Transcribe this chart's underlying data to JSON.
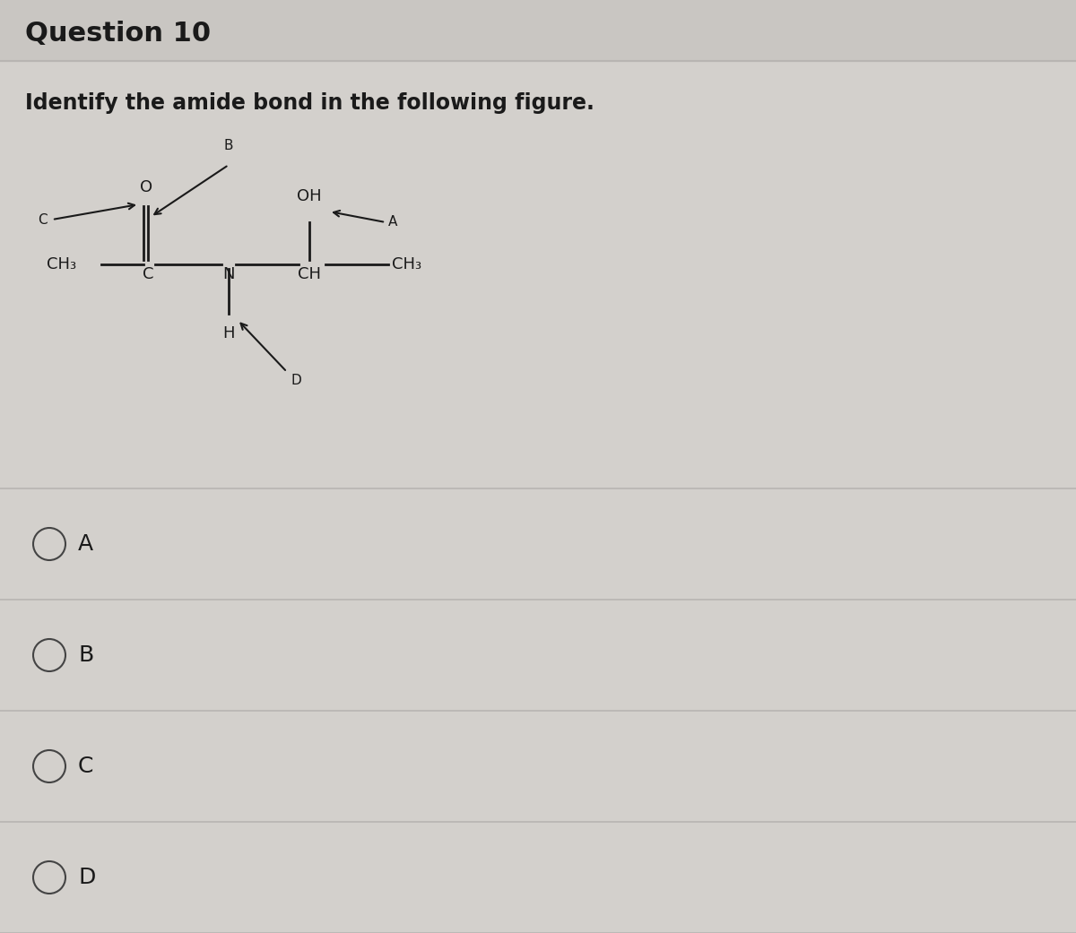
{
  "title": "Question 10",
  "subtitle": "Identify the amide bond in the following figure.",
  "bg_color": "#d3d0cc",
  "title_bar_color": "#c9c6c2",
  "divider_color": "#b8b5b2",
  "text_color": "#1a1a1a",
  "options": [
    "A",
    "B",
    "C",
    "D"
  ],
  "title_fontsize": 22,
  "subtitle_fontsize": 17,
  "option_fontsize": 18,
  "mol_fontsize": 13,
  "label_fontsize": 11
}
